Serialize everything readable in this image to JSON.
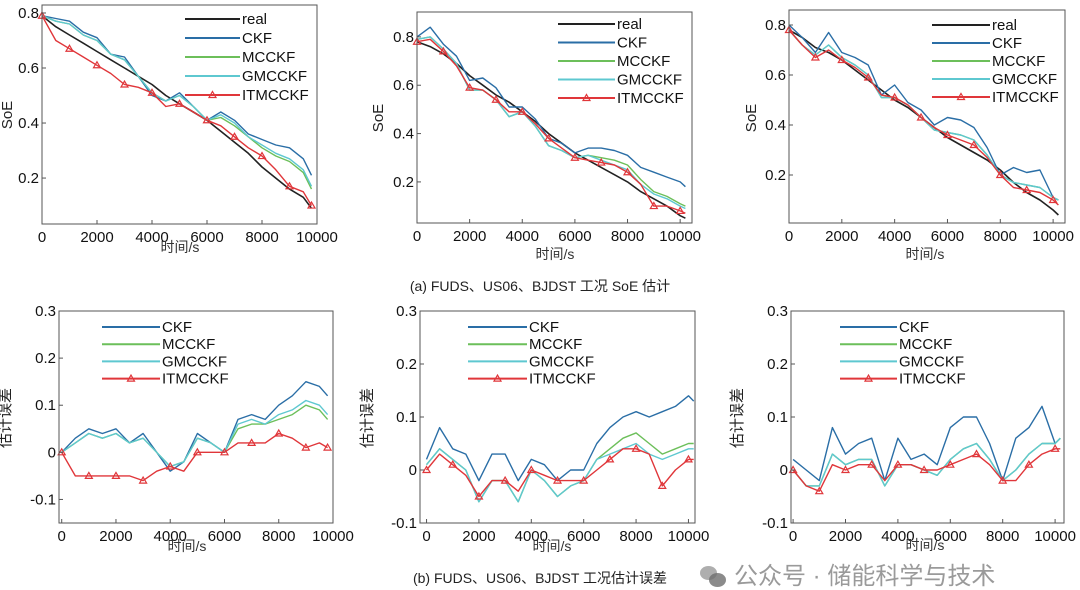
{
  "captions": {
    "a": "(a) FUDS、US06、BJDST 工况 SoE 估计",
    "b": "(b) FUDS、US06、BJDST 工况估计误差"
  },
  "watermark": {
    "text": "公众号 · 储能科学与技术",
    "icon": "wechat-icon"
  },
  "colors": {
    "real": "#222222",
    "CKF": "#2a6ea6",
    "MCCKF": "#6cbf5a",
    "GMCCKF": "#5ec8d0",
    "ITMCCKF": "#e0363a"
  },
  "chart_data": [
    {
      "type": "line",
      "xlabel": "时间/s",
      "ylabel": "SoE",
      "xlim": [
        0,
        10000
      ],
      "ylim": [
        0.033,
        0.829
      ],
      "xticks": [
        0,
        2000,
        4000,
        6000,
        8000,
        10000
      ],
      "yticks": [
        0.2,
        0.4,
        0.6,
        0.8
      ],
      "legend": "top-right",
      "grid": false,
      "x": [
        0,
        500,
        1000,
        1500,
        2000,
        2500,
        3000,
        3500,
        4000,
        4500,
        5000,
        5500,
        6000,
        6500,
        7000,
        7500,
        8000,
        8500,
        9000,
        9500,
        9800
      ],
      "series": [
        {
          "name": "real",
          "values": [
            0.79,
            0.75,
            0.72,
            0.69,
            0.66,
            0.63,
            0.6,
            0.57,
            0.54,
            0.5,
            0.47,
            0.44,
            0.41,
            0.37,
            0.33,
            0.29,
            0.24,
            0.2,
            0.16,
            0.13,
            0.09
          ]
        },
        {
          "name": "CKF",
          "values": [
            0.79,
            0.78,
            0.77,
            0.73,
            0.71,
            0.65,
            0.64,
            0.57,
            0.5,
            0.48,
            0.51,
            0.46,
            0.41,
            0.44,
            0.41,
            0.36,
            0.34,
            0.32,
            0.31,
            0.27,
            0.21
          ]
        },
        {
          "name": "MCCKF",
          "values": [
            0.79,
            0.77,
            0.76,
            0.72,
            0.7,
            0.65,
            0.63,
            0.57,
            0.51,
            0.48,
            0.5,
            0.46,
            0.41,
            0.42,
            0.39,
            0.35,
            0.31,
            0.28,
            0.26,
            0.22,
            0.16
          ]
        },
        {
          "name": "GMCCKF",
          "values": [
            0.79,
            0.77,
            0.76,
            0.72,
            0.7,
            0.65,
            0.63,
            0.57,
            0.51,
            0.48,
            0.5,
            0.46,
            0.41,
            0.43,
            0.4,
            0.35,
            0.32,
            0.29,
            0.27,
            0.23,
            0.17
          ]
        },
        {
          "name": "ITMCCKF",
          "values": [
            0.79,
            0.7,
            0.67,
            0.64,
            0.61,
            0.58,
            0.54,
            0.53,
            0.51,
            0.46,
            0.47,
            0.44,
            0.41,
            0.39,
            0.35,
            0.31,
            0.28,
            0.23,
            0.17,
            0.15,
            0.1
          ]
        }
      ]
    },
    {
      "type": "line",
      "xlabel": "时间/s",
      "ylabel": "SoE",
      "xlim": [
        0,
        10450
      ],
      "ylim": [
        0.03,
        0.903
      ],
      "xticks": [
        0,
        2000,
        4000,
        6000,
        8000,
        10000
      ],
      "yticks": [
        0.2,
        0.4,
        0.6,
        0.8
      ],
      "legend": "top-right",
      "grid": false,
      "x": [
        0,
        500,
        1000,
        1500,
        2000,
        2500,
        3000,
        3500,
        4000,
        4500,
        5000,
        5500,
        6000,
        6500,
        7000,
        7500,
        8000,
        8500,
        9000,
        9500,
        10000,
        10200
      ],
      "series": [
        {
          "name": "real",
          "values": [
            0.78,
            0.76,
            0.73,
            0.69,
            0.64,
            0.6,
            0.56,
            0.53,
            0.49,
            0.45,
            0.4,
            0.36,
            0.32,
            0.29,
            0.26,
            0.23,
            0.2,
            0.16,
            0.13,
            0.1,
            0.06,
            0.05
          ]
        },
        {
          "name": "CKF",
          "values": [
            0.8,
            0.84,
            0.77,
            0.72,
            0.62,
            0.63,
            0.59,
            0.51,
            0.51,
            0.46,
            0.38,
            0.36,
            0.32,
            0.34,
            0.34,
            0.33,
            0.31,
            0.26,
            0.24,
            0.22,
            0.2,
            0.18
          ]
        },
        {
          "name": "MCCKF",
          "values": [
            0.79,
            0.8,
            0.75,
            0.69,
            0.58,
            0.58,
            0.54,
            0.47,
            0.49,
            0.43,
            0.35,
            0.33,
            0.3,
            0.31,
            0.3,
            0.29,
            0.27,
            0.21,
            0.16,
            0.14,
            0.11,
            0.1
          ]
        },
        {
          "name": "GMCCKF",
          "values": [
            0.79,
            0.8,
            0.75,
            0.69,
            0.58,
            0.58,
            0.54,
            0.47,
            0.49,
            0.43,
            0.35,
            0.33,
            0.3,
            0.31,
            0.29,
            0.27,
            0.25,
            0.19,
            0.15,
            0.13,
            0.1,
            0.09
          ]
        },
        {
          "name": "ITMCCKF",
          "values": [
            0.78,
            0.79,
            0.74,
            0.68,
            0.59,
            0.58,
            0.54,
            0.49,
            0.49,
            0.44,
            0.38,
            0.34,
            0.3,
            0.29,
            0.28,
            0.27,
            0.24,
            0.19,
            0.1,
            0.1,
            0.08,
            0.07
          ]
        }
      ]
    },
    {
      "type": "line",
      "xlabel": "时间/s",
      "ylabel": "SoE",
      "xlim": [
        0,
        10450
      ],
      "ylim": [
        0.008,
        0.86
      ],
      "xticks": [
        0,
        2000,
        4000,
        6000,
        8000,
        10000
      ],
      "yticks": [
        0.2,
        0.4,
        0.6,
        0.8
      ],
      "legend": "top-right",
      "grid": false,
      "x": [
        0,
        500,
        1000,
        1500,
        2000,
        2500,
        3000,
        3500,
        4000,
        4500,
        5000,
        5500,
        6000,
        6500,
        7000,
        7500,
        8000,
        8500,
        9000,
        9500,
        10000,
        10200
      ],
      "series": [
        {
          "name": "real",
          "values": [
            0.78,
            0.75,
            0.71,
            0.69,
            0.66,
            0.62,
            0.58,
            0.54,
            0.5,
            0.47,
            0.43,
            0.39,
            0.35,
            0.32,
            0.29,
            0.26,
            0.22,
            0.17,
            0.13,
            0.1,
            0.06,
            0.04
          ]
        },
        {
          "name": "CKF",
          "values": [
            0.8,
            0.75,
            0.69,
            0.77,
            0.69,
            0.67,
            0.64,
            0.52,
            0.56,
            0.49,
            0.46,
            0.4,
            0.43,
            0.42,
            0.39,
            0.31,
            0.2,
            0.23,
            0.21,
            0.22,
            0.11,
            0.1
          ]
        },
        {
          "name": "MCCKF",
          "values": [
            0.78,
            0.72,
            0.68,
            0.72,
            0.67,
            0.64,
            0.6,
            0.51,
            0.51,
            0.48,
            0.43,
            0.38,
            0.37,
            0.36,
            0.34,
            0.28,
            0.2,
            0.17,
            0.16,
            0.15,
            0.11,
            0.1
          ]
        },
        {
          "name": "GMCCKF",
          "values": [
            0.78,
            0.72,
            0.68,
            0.72,
            0.67,
            0.64,
            0.6,
            0.51,
            0.51,
            0.48,
            0.43,
            0.38,
            0.37,
            0.36,
            0.34,
            0.28,
            0.2,
            0.17,
            0.16,
            0.15,
            0.11,
            0.1
          ]
        },
        {
          "name": "ITMCCKF",
          "values": [
            0.78,
            0.72,
            0.67,
            0.7,
            0.66,
            0.63,
            0.59,
            0.52,
            0.51,
            0.48,
            0.43,
            0.39,
            0.36,
            0.34,
            0.32,
            0.27,
            0.2,
            0.15,
            0.14,
            0.13,
            0.1,
            0.08
          ]
        }
      ]
    },
    {
      "type": "line",
      "xlabel": "时间/s",
      "ylabel": "估计误差",
      "xlim": [
        -100,
        10000
      ],
      "ylim": [
        -0.15,
        0.3
      ],
      "xticks": [
        0,
        2000,
        4000,
        6000,
        8000,
        10000
      ],
      "yticks": [
        -0.1,
        0,
        0.1,
        0.2,
        0.3
      ],
      "legend": "top-left",
      "grid": false,
      "x": [
        0,
        500,
        1000,
        1500,
        2000,
        2500,
        3000,
        3500,
        4000,
        4500,
        5000,
        5500,
        6000,
        6500,
        7000,
        7500,
        8000,
        8500,
        9000,
        9500,
        9800
      ],
      "series": [
        {
          "name": "CKF",
          "values": [
            0,
            0.03,
            0.05,
            0.04,
            0.05,
            0.02,
            0.04,
            0.0,
            -0.04,
            -0.02,
            0.04,
            0.02,
            0.0,
            0.07,
            0.08,
            0.07,
            0.1,
            0.12,
            0.15,
            0.14,
            0.12
          ]
        },
        {
          "name": "MCCKF",
          "values": [
            0,
            0.02,
            0.04,
            0.03,
            0.04,
            0.02,
            0.03,
            0,
            -0.03,
            -0.02,
            0.03,
            0.02,
            0,
            0.05,
            0.06,
            0.06,
            0.07,
            0.08,
            0.1,
            0.09,
            0.07
          ]
        },
        {
          "name": "GMCCKF",
          "values": [
            0,
            0.02,
            0.04,
            0.03,
            0.04,
            0.02,
            0.03,
            0.0,
            -0.03,
            -0.02,
            0.03,
            0.02,
            0.0,
            0.06,
            0.07,
            0.06,
            0.08,
            0.09,
            0.11,
            0.1,
            0.08
          ]
        },
        {
          "name": "ITMCCKF",
          "values": [
            0,
            -0.05,
            -0.05,
            -0.05,
            -0.05,
            -0.05,
            -0.06,
            -0.04,
            -0.03,
            -0.04,
            0.0,
            0.0,
            0.0,
            0.02,
            0.02,
            0.02,
            0.04,
            0.03,
            0.01,
            0.02,
            0.01
          ]
        }
      ]
    },
    {
      "type": "line",
      "xlabel": "时间/s",
      "ylabel": "估计误差",
      "xlim": [
        -250,
        10250
      ],
      "ylim": [
        -0.1,
        0.3
      ],
      "xticks": [
        0,
        2000,
        4000,
        6000,
        8000,
        10000
      ],
      "yticks": [
        -0.1,
        0,
        0.1,
        0.2,
        0.3
      ],
      "legend": "top-left",
      "grid": false,
      "x": [
        0,
        500,
        1000,
        1500,
        2000,
        2500,
        3000,
        3500,
        4000,
        4500,
        5000,
        5500,
        6000,
        6500,
        7000,
        7500,
        8000,
        8500,
        9000,
        9500,
        10000,
        10200
      ],
      "series": [
        {
          "name": "CKF",
          "values": [
            0.02,
            0.08,
            0.04,
            0.03,
            -0.02,
            0.03,
            0.03,
            -0.02,
            0.02,
            0.01,
            -0.02,
            0.0,
            0.0,
            0.05,
            0.08,
            0.1,
            0.11,
            0.1,
            0.11,
            0.12,
            0.14,
            0.13
          ]
        },
        {
          "name": "MCCKF",
          "values": [
            0.01,
            0.04,
            0.02,
            0.0,
            -0.06,
            -0.02,
            -0.02,
            -0.06,
            0.0,
            -0.02,
            -0.05,
            -0.03,
            -0.02,
            0.02,
            0.04,
            0.06,
            0.07,
            0.05,
            0.03,
            0.04,
            0.05,
            0.05
          ]
        },
        {
          "name": "GMCCKF",
          "values": [
            0.01,
            0.04,
            0.02,
            0.0,
            -0.06,
            -0.02,
            -0.02,
            -0.06,
            0.0,
            -0.02,
            -0.05,
            -0.03,
            -0.02,
            0.02,
            0.03,
            0.04,
            0.05,
            0.03,
            0.02,
            0.03,
            0.04,
            0.04
          ]
        },
        {
          "name": "ITMCCKF",
          "values": [
            0.0,
            0.03,
            0.01,
            -0.01,
            -0.05,
            -0.02,
            -0.02,
            -0.04,
            0.0,
            -0.01,
            -0.02,
            -0.02,
            -0.02,
            0.0,
            0.02,
            0.04,
            0.04,
            0.03,
            -0.03,
            0.0,
            0.02,
            0.02
          ]
        }
      ]
    },
    {
      "type": "line",
      "xlabel": "时间/s",
      "ylabel": "估计误差",
      "xlim": [
        -80,
        10340
      ],
      "ylim": [
        -0.1,
        0.3
      ],
      "xticks": [
        0,
        2000,
        4000,
        6000,
        8000,
        10000
      ],
      "yticks": [
        -0.1,
        0,
        0.1,
        0.2,
        0.3
      ],
      "legend": "top-left",
      "grid": false,
      "x": [
        0,
        500,
        1000,
        1500,
        2000,
        2500,
        3000,
        3500,
        4000,
        4500,
        5000,
        5500,
        6000,
        6500,
        7000,
        7500,
        8000,
        8500,
        9000,
        9500,
        10000,
        10200
      ],
      "series": [
        {
          "name": "CKF",
          "values": [
            0.02,
            0.0,
            -0.02,
            0.08,
            0.03,
            0.05,
            0.06,
            -0.02,
            0.06,
            0.02,
            0.03,
            0.01,
            0.08,
            0.1,
            0.1,
            0.05,
            -0.02,
            0.06,
            0.08,
            0.12,
            0.05,
            0.06
          ]
        },
        {
          "name": "MCCKF",
          "values": [
            0.0,
            -0.03,
            -0.03,
            0.03,
            0.01,
            0.02,
            0.02,
            -0.03,
            0.01,
            0.01,
            0.0,
            -0.01,
            0.02,
            0.04,
            0.05,
            0.02,
            -0.02,
            0.0,
            0.03,
            0.05,
            0.05,
            0.06
          ]
        },
        {
          "name": "GMCCKF",
          "values": [
            0.0,
            -0.03,
            -0.03,
            0.03,
            0.01,
            0.02,
            0.02,
            -0.03,
            0.01,
            0.01,
            0.0,
            -0.01,
            0.02,
            0.04,
            0.05,
            0.02,
            -0.02,
            0.0,
            0.03,
            0.05,
            0.05,
            0.06
          ]
        },
        {
          "name": "ITMCCKF",
          "values": [
            0.0,
            -0.03,
            -0.04,
            0.01,
            0.0,
            0.01,
            0.01,
            -0.02,
            0.01,
            0.01,
            0.0,
            0.0,
            0.01,
            0.02,
            0.03,
            0.01,
            -0.02,
            -0.02,
            0.01,
            0.03,
            0.04,
            0.04
          ]
        }
      ]
    }
  ]
}
